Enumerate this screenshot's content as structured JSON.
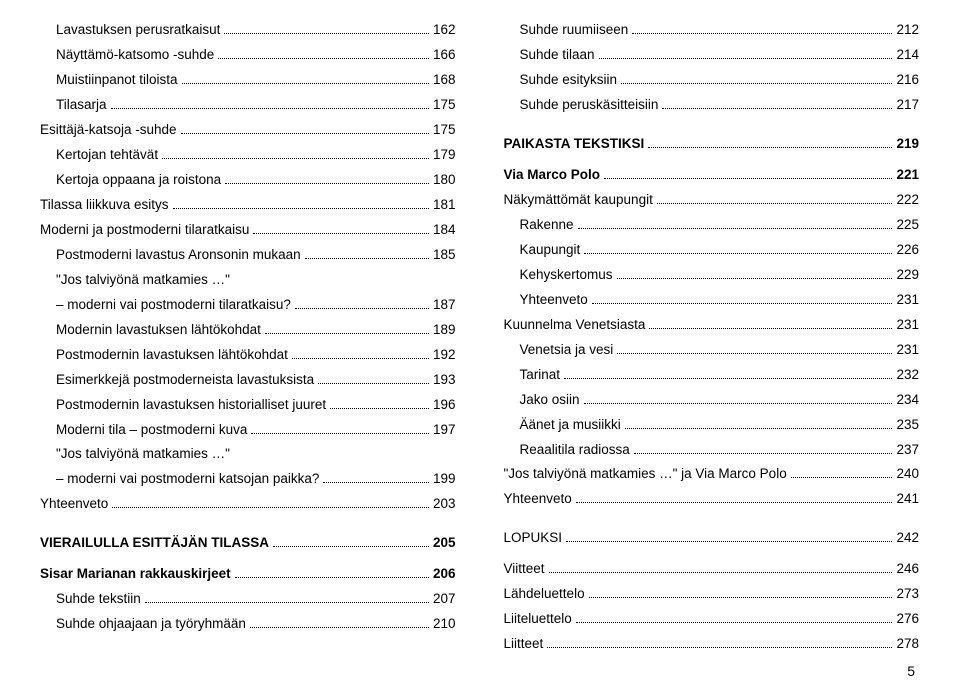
{
  "pageNumber": "5",
  "left": [
    {
      "label": "Lavastuksen perusratkaisut",
      "page": "162",
      "indent": 1
    },
    {
      "label": "Näyttämö-katsomo -suhde",
      "page": "166",
      "indent": 1
    },
    {
      "label": "Muistiinpanot tiloista",
      "page": "168",
      "indent": 1
    },
    {
      "label": "Tilasarja",
      "page": "175",
      "indent": 1
    },
    {
      "label": "Esittäjä-katsoja -suhde",
      "page": "175",
      "indent": 0
    },
    {
      "label": "Kertojan tehtävät",
      "page": "179",
      "indent": 1
    },
    {
      "label": "Kertoja oppaana ja roistona",
      "page": "180",
      "indent": 1
    },
    {
      "label": "Tilassa liikkuva esitys",
      "page": "181",
      "indent": 0
    },
    {
      "label": "Moderni ja postmoderni tilaratkaisu",
      "page": "184",
      "indent": 0
    },
    {
      "label": "Postmoderni lavastus Aronsonin mukaan",
      "page": "185",
      "indent": 1
    },
    {
      "label": "\"Jos talviyönä matkamies …\"",
      "page": "",
      "indent": 1,
      "noleader": true
    },
    {
      "label": "– moderni vai postmoderni tilaratkaisu?",
      "page": "187",
      "indent": 1
    },
    {
      "label": "Modernin lavastuksen lähtökohdat",
      "page": "189",
      "indent": 1
    },
    {
      "label": "Postmodernin lavastuksen lähtökohdat",
      "page": "192",
      "indent": 1
    },
    {
      "label": "Esimerkkejä postmoderneista lavastuksista",
      "page": "193",
      "indent": 1
    },
    {
      "label": "Postmodernin lavastuksen historialliset juuret",
      "page": "196",
      "indent": 1
    },
    {
      "label": "Moderni tila – postmoderni kuva",
      "page": "197",
      "indent": 1
    },
    {
      "label": "\"Jos talviyönä matkamies …\"",
      "page": "",
      "indent": 1,
      "noleader": true
    },
    {
      "label": "– moderni vai postmoderni katsojan paikka?",
      "page": "199",
      "indent": 1
    },
    {
      "label": "Yhteenveto",
      "page": "203",
      "indent": 0
    },
    {
      "spacer": "md"
    },
    {
      "label": "VIERAILULLA ESITTÄJÄN TILASSA",
      "page": "205",
      "indent": 0,
      "bold": true
    },
    {
      "spacer": "sm"
    },
    {
      "label": "Sisar Marianan rakkauskirjeet",
      "page": "206",
      "indent": 0,
      "bold": true
    },
    {
      "label": "Suhde tekstiin",
      "page": "207",
      "indent": 1
    },
    {
      "label": "Suhde ohjaajaan ja työryhmään",
      "page": "210",
      "indent": 1
    }
  ],
  "right": [
    {
      "label": "Suhde ruumiiseen",
      "page": "212",
      "indent": 1
    },
    {
      "label": "Suhde tilaan",
      "page": "214",
      "indent": 1
    },
    {
      "label": "Suhde esityksiin",
      "page": "216",
      "indent": 1
    },
    {
      "label": "Suhde peruskäsitteisiin",
      "page": "217",
      "indent": 1
    },
    {
      "spacer": "md"
    },
    {
      "label": "PAIKASTA TEKSTIKSI",
      "page": "219",
      "indent": 0,
      "bold": true
    },
    {
      "spacer": "sm"
    },
    {
      "label": "Via Marco Polo",
      "page": "221",
      "indent": 0,
      "bold": true
    },
    {
      "label": "Näkymättömät kaupungit",
      "page": "222",
      "indent": 0
    },
    {
      "label": "Rakenne",
      "page": "225",
      "indent": 1
    },
    {
      "label": "Kaupungit",
      "page": "226",
      "indent": 1
    },
    {
      "label": "Kehyskertomus",
      "page": "229",
      "indent": 1
    },
    {
      "label": "Yhteenveto",
      "page": "231",
      "indent": 1
    },
    {
      "label": "Kuunnelma Venetsiasta",
      "page": "231",
      "indent": 0
    },
    {
      "label": "Venetsia ja vesi",
      "page": "231",
      "indent": 1
    },
    {
      "label": "Tarinat",
      "page": "232",
      "indent": 1
    },
    {
      "label": "Jako osiin",
      "page": "234",
      "indent": 1
    },
    {
      "label": "Äänet ja musiikki",
      "page": "235",
      "indent": 1
    },
    {
      "label": "Reaalitila radiossa",
      "page": "237",
      "indent": 1
    },
    {
      "label": "\"Jos talviyönä matkamies …\" ja Via Marco Polo",
      "page": "240",
      "indent": 0
    },
    {
      "label": "Yhteenveto",
      "page": "241",
      "indent": 0
    },
    {
      "spacer": "md"
    },
    {
      "label": "LOPUKSI",
      "page": "242",
      "indent": 0
    },
    {
      "spacer": "sm"
    },
    {
      "label": "Viitteet",
      "page": "246",
      "indent": 0
    },
    {
      "label": "Lähdeluettelo",
      "page": "273",
      "indent": 0
    },
    {
      "label": "Liiteluettelo",
      "page": "276",
      "indent": 0
    },
    {
      "label": "Liitteet",
      "page": "278",
      "indent": 0
    }
  ]
}
